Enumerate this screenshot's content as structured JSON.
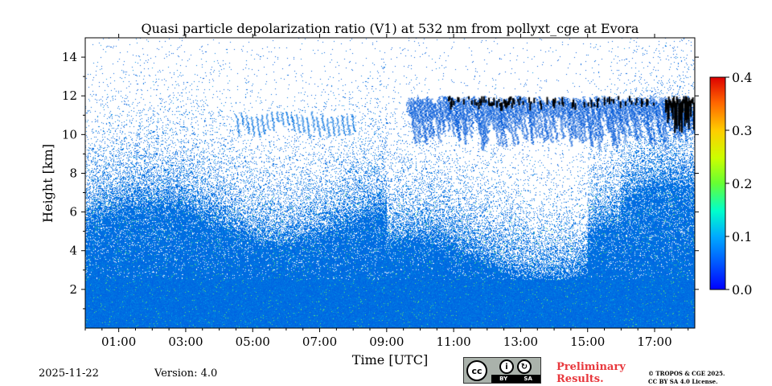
{
  "chart_data": {
    "type": "heatmap",
    "title": "Quasi particle depolarization ratio (V1) at 532 nm from pollyxt_cge at Evora",
    "xlabel": "Time [UTC]",
    "ylabel": "Height [km]",
    "xlim": [
      0.0,
      18.2
    ],
    "ylim": [
      0.0,
      15.0
    ],
    "x_ticks": [
      1,
      3,
      5,
      7,
      9,
      11,
      13,
      15,
      17
    ],
    "x_tick_labels": [
      "01:00",
      "03:00",
      "05:00",
      "07:00",
      "09:00",
      "11:00",
      "13:00",
      "15:00",
      "17:00"
    ],
    "y_ticks": [
      2,
      4,
      6,
      8,
      10,
      12,
      14
    ],
    "y_tick_labels": [
      "2",
      "4",
      "6",
      "8",
      "10",
      "12",
      "14"
    ],
    "colorbar": {
      "range": [
        0.0,
        0.4
      ],
      "ticks": [
        0.0,
        0.1,
        0.2,
        0.3,
        0.4
      ],
      "tick_labels": [
        "0.0",
        "0.1",
        "0.2",
        "0.3",
        "0.4"
      ],
      "colormap": "jet"
    },
    "features": [
      {
        "name": "boundary layer / noise region",
        "time_range": [
          0.0,
          18.2
        ],
        "height_range": [
          0.0,
          8.0
        ],
        "typical_value": 0.03
      },
      {
        "name": "upper cloud layer (high depolarization)",
        "time_range": [
          9.5,
          18.2
        ],
        "height_range": [
          9.0,
          12.2
        ],
        "typical_value": 0.05
      },
      {
        "name": "saturated cloud top (black)",
        "time_range": [
          10.8,
          18.2
        ],
        "height_range": [
          10.5,
          12.1
        ],
        "typical_value": 0.45
      }
    ]
  },
  "footer": {
    "date": "2025-11-22",
    "version": "Version: 4.0",
    "license_badge": {
      "cc": "cc",
      "by": "BY",
      "sa": "SA"
    },
    "preliminary_line1": "Preliminary",
    "preliminary_line2": "Results.",
    "copyright_line1": "© TROPOS & CGE 2025.",
    "copyright_line2": "CC BY SA 4.0 License."
  }
}
